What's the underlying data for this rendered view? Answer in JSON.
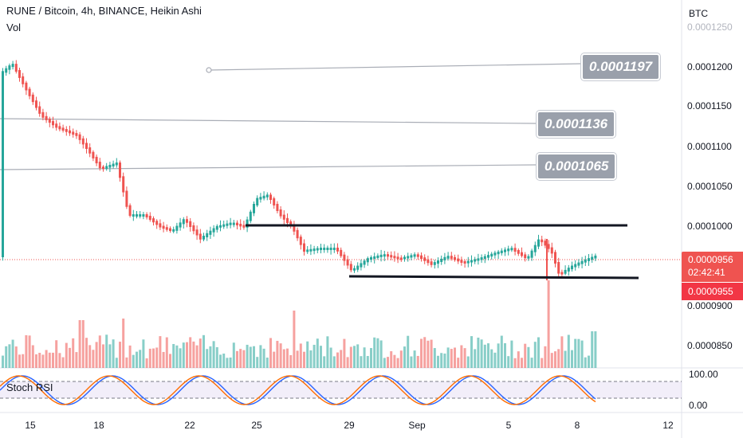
{
  "header": {
    "symbol_line": "RUNE / Bitcoin, 4h, BINANCE, Heikin Ashi",
    "volume_label": "Vol"
  },
  "price_axis": {
    "currency": "BTC",
    "ticks": [
      "0.0001250",
      "0.0001200",
      "0.0001150",
      "0.0001100",
      "0.0001050",
      "0.0001000",
      "0.0000900",
      "0.0000850"
    ]
  },
  "annotations": {
    "level_1": "0.0001197",
    "level_2": "0.0001136",
    "level_3": "0.0001065"
  },
  "price_tags": {
    "current_price": "0.0000956",
    "countdown": "02:42:41",
    "low_price": "0.0000955"
  },
  "stoch_rsi": {
    "label": "Stoch RSI",
    "ticks": [
      "100.00",
      "0.00"
    ]
  },
  "time_axis": {
    "ticks": [
      "15",
      "18",
      "22",
      "25",
      "29",
      "Sep",
      "5",
      "8",
      "12"
    ]
  },
  "colors": {
    "bull": "#26a69a",
    "bear": "#ef5350",
    "k_line": "#2962ff",
    "d_line": "#ff6d00",
    "badge": "#9aa0ab",
    "price_tag": "#ef5350"
  }
}
